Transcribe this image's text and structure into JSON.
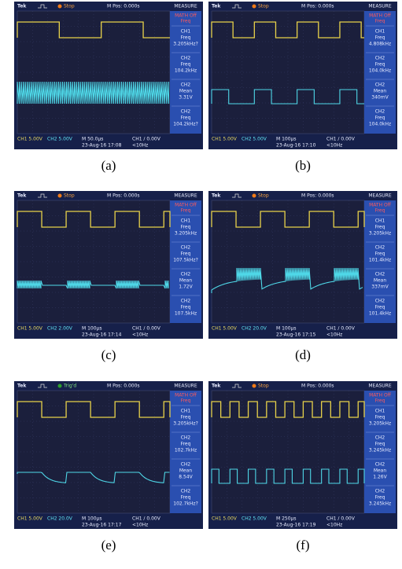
{
  "brand": "Tek",
  "measure": "MEASURE",
  "math": "MATH Off",
  "math_kind": "Freq",
  "panels": [
    {
      "label": "(a)",
      "status": "Stop",
      "mpos": "M Pos: 0.000s",
      "readouts": [
        [
          "CH1",
          "Freq",
          "3.205kHz?"
        ],
        [
          "CH2",
          "Freq",
          "104.2kHz"
        ],
        [
          "CH2",
          "Mean",
          "3.31V"
        ],
        [
          "CH2",
          "Freq",
          "104.2kHz?"
        ]
      ],
      "ch1": "CH1 5.00V",
      "ch2": "CH2 5.00V",
      "time": "M 50.0µs",
      "date": "23-Aug-16 17:08",
      "trig": "CH1 ∕ 0.00V",
      "rate": "<10Hz"
    },
    {
      "label": "(b)",
      "status": "Stop",
      "mpos": "M Pos: 0.000s",
      "readouts": [
        [
          "CH1",
          "Freq",
          "4.808kHz"
        ],
        [
          "CH2",
          "Freq",
          "104.0kHz"
        ],
        [
          "CH2",
          "Mean",
          "340mV"
        ],
        [
          "CH2",
          "Freq",
          "104.0kHz"
        ]
      ],
      "ch1": "CH1 5.00V",
      "ch2": "CH2 5.00V",
      "time": "M 100µs",
      "date": "23-Aug-16 17:10",
      "trig": "CH1 ∕ 0.00V",
      "rate": "<10Hz"
    },
    {
      "label": "(c)",
      "status": "Stop",
      "mpos": "M Pos: 0.000s",
      "readouts": [
        [
          "CH1",
          "Freq",
          "3.205kHz"
        ],
        [
          "CH2",
          "Freq",
          "107.5kHz?"
        ],
        [
          "CH2",
          "Mean",
          "1.72V"
        ],
        [
          "CH2",
          "Freq",
          "107.5kHz"
        ]
      ],
      "ch1": "CH1 5.00V",
      "ch2": "CH2 2.00V",
      "time": "M 100µs",
      "date": "23-Aug-16 17:14",
      "trig": "CH1 ∕ 0.00V",
      "rate": "<10Hz"
    },
    {
      "label": "(d)",
      "status": "Stop",
      "mpos": "M Pos: 0.000s",
      "readouts": [
        [
          "CH1",
          "Freq",
          "3.205kHz"
        ],
        [
          "CH2",
          "Freq",
          "101.4kHz"
        ],
        [
          "CH2",
          "Mean",
          "337mV"
        ],
        [
          "CH2",
          "Freq",
          "101.4kHz"
        ]
      ],
      "ch1": "CH1 5.00V",
      "ch2": "CH2 20.0V",
      "time": "M 100µs",
      "date": "23-Aug-16 17:15",
      "trig": "CH1 ∕ 0.00V",
      "rate": "<10Hz"
    },
    {
      "label": "(e)",
      "status": "Trig'd",
      "mpos": "M Pos: 0.000s",
      "readouts": [
        [
          "CH1",
          "Freq",
          "3.205kHz?"
        ],
        [
          "CH2",
          "Freq",
          "102.7kHz"
        ],
        [
          "CH2",
          "Mean",
          "8.54V"
        ],
        [
          "CH2",
          "Freq",
          "102.7kHz?"
        ]
      ],
      "ch1": "CH1 5.00V",
      "ch2": "CH2 20.0V",
      "time": "M 100µs",
      "date": "23-Aug-16 17:17",
      "trig": "CH1 ∕ 0.00V",
      "rate": "<10Hz"
    },
    {
      "label": "(f)",
      "status": "Stop",
      "mpos": "M Pos: 0.000s",
      "readouts": [
        [
          "CH1",
          "Freq",
          "3.205kHz"
        ],
        [
          "CH2",
          "Freq",
          "3.245kHz"
        ],
        [
          "CH2",
          "Mean",
          "1.26V"
        ],
        [
          "CH2",
          "Freq",
          "3.245kHz"
        ]
      ],
      "ch1": "CH1 5.00V",
      "ch2": "CH2 5.00V",
      "time": "M 250µs",
      "date": "23-Aug-16 17:19",
      "trig": "CH1 ∕ 0.00V",
      "rate": "<10Hz"
    }
  ]
}
